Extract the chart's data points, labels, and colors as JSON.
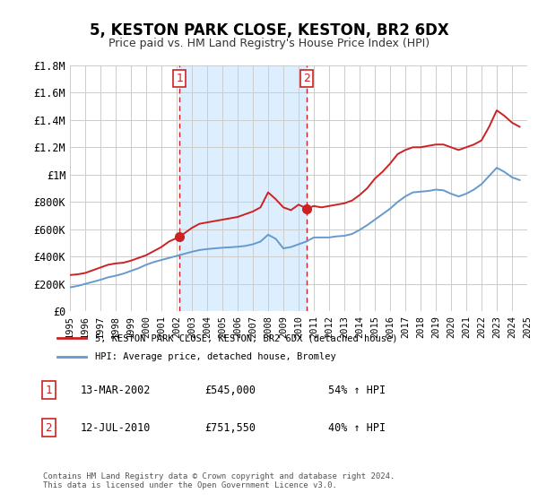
{
  "title": "5, KESTON PARK CLOSE, KESTON, BR2 6DX",
  "subtitle": "Price paid vs. HM Land Registry's House Price Index (HPI)",
  "red_line_label": "5, KESTON PARK CLOSE, KESTON, BR2 6DX (detached house)",
  "blue_line_label": "HPI: Average price, detached house, Bromley",
  "marker1_x": 2002.19,
  "marker1_y": 545000,
  "marker1_label": "1",
  "marker1_date": "13-MAR-2002",
  "marker1_price": "£545,000",
  "marker1_hpi": "54% ↑ HPI",
  "marker2_x": 2010.53,
  "marker2_y": 751550,
  "marker2_label": "2",
  "marker2_date": "12-JUL-2010",
  "marker2_price": "£751,550",
  "marker2_hpi": "40% ↑ HPI",
  "xlim": [
    1995,
    2025
  ],
  "ylim": [
    0,
    1800000
  ],
  "yticks": [
    0,
    200000,
    400000,
    600000,
    800000,
    1000000,
    1200000,
    1400000,
    1600000,
    1800000
  ],
  "ytick_labels": [
    "£0",
    "£200K",
    "£400K",
    "£600K",
    "£800K",
    "£1M",
    "£1.2M",
    "£1.4M",
    "£1.6M",
    "£1.8M"
  ],
  "xticks": [
    1995,
    1996,
    1997,
    1998,
    1999,
    2000,
    2001,
    2002,
    2003,
    2004,
    2005,
    2006,
    2007,
    2008,
    2009,
    2010,
    2011,
    2012,
    2013,
    2014,
    2015,
    2016,
    2017,
    2018,
    2019,
    2020,
    2021,
    2022,
    2023,
    2024,
    2025
  ],
  "red_color": "#cc2222",
  "blue_color": "#6699cc",
  "shade_color": "#ddeeff",
  "grid_color": "#cccccc",
  "background_color": "#f8f8f8",
  "footnote": "Contains HM Land Registry data © Crown copyright and database right 2024.\nThis data is licensed under the Open Government Licence v3.0.",
  "red_x": [
    1995.0,
    1995.5,
    1996.0,
    1996.5,
    1997.0,
    1997.5,
    1998.0,
    1998.5,
    1999.0,
    1999.5,
    2000.0,
    2000.5,
    2001.0,
    2001.5,
    2002.19,
    2002.5,
    2003.0,
    2003.5,
    2004.0,
    2004.5,
    2005.0,
    2005.5,
    2006.0,
    2006.5,
    2007.0,
    2007.5,
    2008.0,
    2008.5,
    2009.0,
    2009.5,
    2010.0,
    2010.53,
    2011.0,
    2011.5,
    2012.0,
    2012.5,
    2013.0,
    2013.5,
    2014.0,
    2014.5,
    2015.0,
    2015.5,
    2016.0,
    2016.5,
    2017.0,
    2017.5,
    2018.0,
    2018.5,
    2019.0,
    2019.5,
    2020.0,
    2020.5,
    2021.0,
    2021.5,
    2022.0,
    2022.5,
    2023.0,
    2023.5,
    2024.0,
    2024.5
  ],
  "red_y": [
    265000,
    270000,
    280000,
    300000,
    320000,
    340000,
    350000,
    355000,
    370000,
    390000,
    410000,
    440000,
    470000,
    510000,
    545000,
    570000,
    610000,
    640000,
    650000,
    660000,
    670000,
    680000,
    690000,
    710000,
    730000,
    760000,
    870000,
    820000,
    760000,
    740000,
    780000,
    751550,
    770000,
    760000,
    770000,
    780000,
    790000,
    810000,
    850000,
    900000,
    970000,
    1020000,
    1080000,
    1150000,
    1180000,
    1200000,
    1200000,
    1210000,
    1220000,
    1220000,
    1200000,
    1180000,
    1200000,
    1220000,
    1250000,
    1350000,
    1470000,
    1430000,
    1380000,
    1350000
  ],
  "blue_x": [
    1995.0,
    1995.5,
    1996.0,
    1996.5,
    1997.0,
    1997.5,
    1998.0,
    1998.5,
    1999.0,
    1999.5,
    2000.0,
    2000.5,
    2001.0,
    2001.5,
    2002.0,
    2002.5,
    2003.0,
    2003.5,
    2004.0,
    2004.5,
    2005.0,
    2005.5,
    2006.0,
    2006.5,
    2007.0,
    2007.5,
    2008.0,
    2008.5,
    2009.0,
    2009.5,
    2010.0,
    2010.5,
    2011.0,
    2011.5,
    2012.0,
    2012.5,
    2013.0,
    2013.5,
    2014.0,
    2014.5,
    2015.0,
    2015.5,
    2016.0,
    2016.5,
    2017.0,
    2017.5,
    2018.0,
    2018.5,
    2019.0,
    2019.5,
    2020.0,
    2020.5,
    2021.0,
    2021.5,
    2022.0,
    2022.5,
    2023.0,
    2023.5,
    2024.0,
    2024.5
  ],
  "blue_y": [
    175000,
    185000,
    200000,
    215000,
    230000,
    248000,
    260000,
    275000,
    295000,
    315000,
    340000,
    360000,
    375000,
    390000,
    405000,
    420000,
    435000,
    448000,
    455000,
    460000,
    465000,
    468000,
    472000,
    478000,
    490000,
    510000,
    560000,
    530000,
    460000,
    470000,
    490000,
    510000,
    540000,
    540000,
    540000,
    548000,
    552000,
    565000,
    595000,
    630000,
    670000,
    710000,
    750000,
    800000,
    840000,
    870000,
    875000,
    880000,
    890000,
    885000,
    860000,
    840000,
    860000,
    890000,
    930000,
    990000,
    1050000,
    1020000,
    980000,
    960000
  ]
}
